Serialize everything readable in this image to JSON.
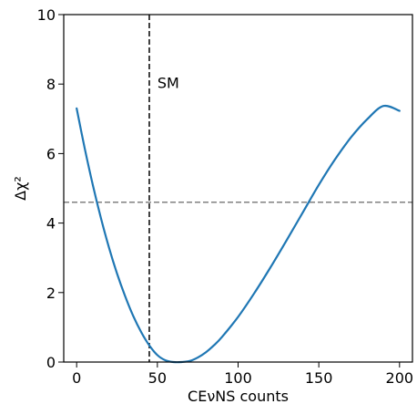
{
  "chart_data": {
    "type": "line",
    "xlabel": "CEνNS counts",
    "ylabel": "Δχ²",
    "xlim": [
      -8,
      208
    ],
    "ylim": [
      0,
      10
    ],
    "x_ticks": [
      0,
      50,
      100,
      150,
      200
    ],
    "y_ticks": [
      0,
      2,
      4,
      6,
      8,
      10
    ],
    "grid": false,
    "series": [
      {
        "color": "#1f77b4",
        "x": [
          0,
          5,
          10,
          15,
          20,
          25,
          30,
          35,
          40,
          45,
          50,
          55,
          60,
          65,
          70,
          75,
          80,
          85,
          90,
          100,
          110,
          120,
          130,
          140,
          150,
          160,
          170,
          180,
          190,
          200
        ],
        "y": [
          7.3,
          6.15,
          5.1,
          4.15,
          3.3,
          2.55,
          1.9,
          1.33,
          0.86,
          0.48,
          0.2,
          0.05,
          0.0,
          0.0,
          0.03,
          0.13,
          0.28,
          0.48,
          0.72,
          1.3,
          1.98,
          2.72,
          3.5,
          4.3,
          5.1,
          5.83,
          6.47,
          6.99,
          7.37,
          7.23
        ]
      }
    ],
    "reference_lines": [
      {
        "orientation": "vertical",
        "value": 45,
        "style": "dashed",
        "color": "#000000"
      },
      {
        "orientation": "horizontal",
        "value": 4.6,
        "style": "dashed",
        "color": "#808080"
      }
    ],
    "annotations": [
      {
        "text": "SM",
        "x": 50,
        "y": 8.05
      }
    ]
  }
}
